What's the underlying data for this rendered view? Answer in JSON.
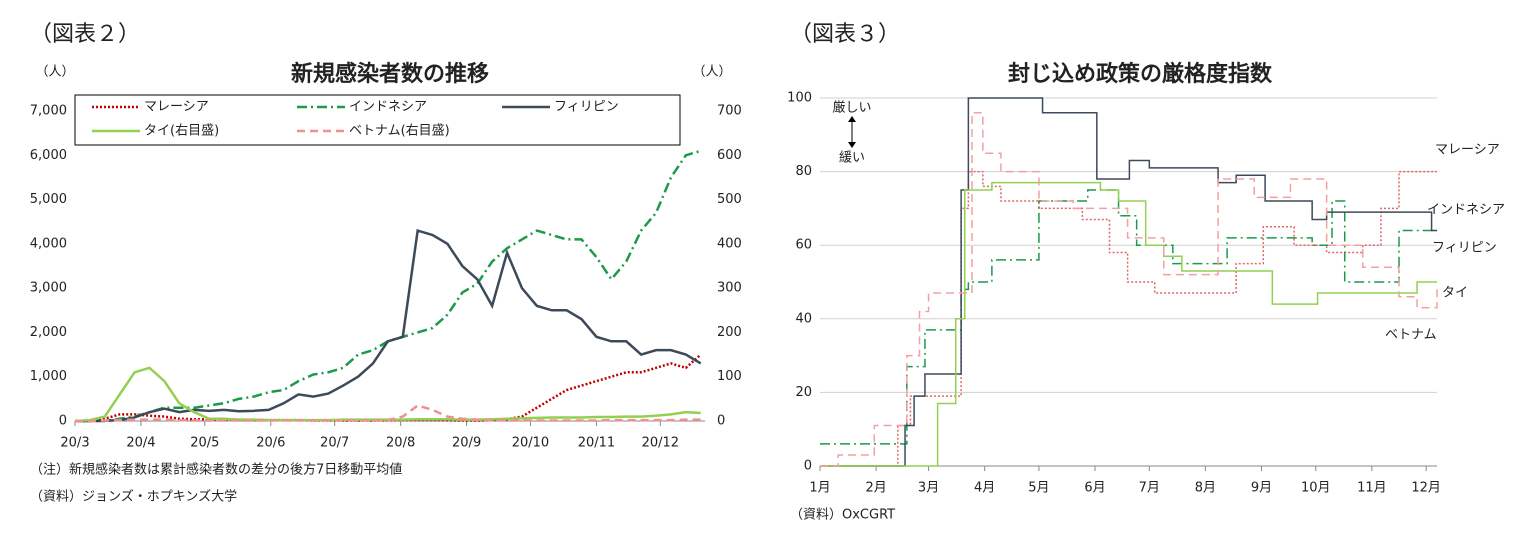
{
  "chart_data": [
    {
      "type": "line",
      "figure_label": "（図表２）",
      "title": "新規感染者数の推移",
      "y_label": "（人）",
      "y2_label": "（人）",
      "notes": [
        "（注）新規感染者数は累計感染者数の差分の後方7日移動平均値",
        "（資料）ジョンズ・ホプキンズ大学"
      ],
      "grid": false,
      "legend": "top",
      "xlim": [
        0,
        296
      ],
      "xticks": [
        {
          "value": 0,
          "label": "20/3"
        },
        {
          "value": 31,
          "label": "20/4"
        },
        {
          "value": 61,
          "label": "20/5"
        },
        {
          "value": 92,
          "label": "20/6"
        },
        {
          "value": 122,
          "label": "20/7"
        },
        {
          "value": 153,
          "label": "20/8"
        },
        {
          "value": 184,
          "label": "20/9"
        },
        {
          "value": 214,
          "label": "20/10"
        },
        {
          "value": 245,
          "label": "20/11"
        },
        {
          "value": 275,
          "label": "20/12"
        }
      ],
      "ylim": [
        0,
        7000
      ],
      "yticks": [
        0,
        {
          "value": 1000,
          "label": "1,000"
        },
        {
          "value": 2000,
          "label": "2,000"
        },
        {
          "value": 3000,
          "label": "3,000"
        },
        {
          "value": 4000,
          "label": "4,000"
        },
        {
          "value": 5000,
          "label": "5,000"
        },
        {
          "value": 6000,
          "label": "6,000"
        },
        {
          "value": 7000,
          "label": "7,000"
        }
      ],
      "y2lim": [
        0,
        700
      ],
      "y2ticks": [
        0,
        100,
        200,
        300,
        400,
        500,
        600,
        700
      ],
      "x": [
        0,
        7,
        14,
        21,
        28,
        35,
        42,
        49,
        56,
        63,
        70,
        77,
        84,
        91,
        98,
        105,
        112,
        119,
        126,
        133,
        140,
        147,
        154,
        161,
        168,
        175,
        182,
        189,
        196,
        203,
        210,
        217,
        224,
        231,
        238,
        245,
        252,
        259,
        266,
        273,
        280,
        287,
        294
      ],
      "series": [
        {
          "name": "マレーシア",
          "color": "#c00000",
          "style": "dotted",
          "values": [
            0,
            0,
            50,
            150,
            150,
            120,
            100,
            50,
            40,
            40,
            40,
            30,
            20,
            20,
            20,
            20,
            10,
            10,
            10,
            10,
            10,
            15,
            20,
            20,
            20,
            15,
            10,
            10,
            20,
            40,
            100,
            300,
            500,
            700,
            800,
            900,
            1000,
            1100,
            1100,
            1200,
            1300,
            1200,
            1500
          ]
        },
        {
          "name": "インドネシア",
          "color": "#1a9a4a",
          "style": "dashdot",
          "values": [
            0,
            0,
            0,
            50,
            100,
            200,
            300,
            300,
            300,
            350,
            400,
            500,
            550,
            650,
            700,
            900,
            1050,
            1100,
            1200,
            1500,
            1600,
            1800,
            1900,
            2000,
            2100,
            2400,
            2900,
            3100,
            3600,
            3900,
            4100,
            4300,
            4200,
            4100,
            4100,
            3700,
            3200,
            3600,
            4300,
            4700,
            5500,
            6000,
            6100
          ]
        },
        {
          "name": "フィリピン",
          "color": "#3d4a5a",
          "style": "solid",
          "values": [
            0,
            0,
            5,
            20,
            80,
            200,
            280,
            200,
            250,
            230,
            250,
            220,
            230,
            250,
            400,
            600,
            550,
            620,
            800,
            1000,
            1300,
            1800,
            1900,
            4300,
            4200,
            4000,
            3500,
            3200,
            2600,
            3800,
            3000,
            2600,
            2500,
            2500,
            2300,
            1900,
            1800,
            1800,
            1500,
            1600,
            1600,
            1500,
            1300
          ]
        },
        {
          "name": "タイ(右目盛)",
          "color": "#92d050",
          "style": "solid",
          "axis": "y2",
          "values": [
            0,
            2,
            10,
            60,
            110,
            120,
            90,
            40,
            20,
            5,
            5,
            3,
            3,
            2,
            2,
            2,
            2,
            2,
            3,
            3,
            3,
            3,
            3,
            4,
            4,
            4,
            3,
            3,
            4,
            5,
            6,
            7,
            8,
            8,
            8,
            9,
            9,
            10,
            10,
            12,
            15,
            20,
            18
          ]
        },
        {
          "name": "ベトナム(右目盛)",
          "color": "#f09090",
          "style": "dashed",
          "axis": "y2",
          "values": [
            0,
            0,
            1,
            2,
            3,
            3,
            3,
            2,
            1,
            1,
            1,
            1,
            1,
            1,
            1,
            1,
            1,
            1,
            1,
            1,
            1,
            2,
            10,
            35,
            25,
            10,
            5,
            3,
            2,
            1,
            1,
            1,
            1,
            1,
            1,
            1,
            2,
            2,
            2,
            2,
            2,
            3,
            3
          ]
        }
      ]
    },
    {
      "type": "step",
      "figure_label": "（図表３）",
      "title": "封じ込め政策の厳格度指数",
      "notes": [
        "（資料）OxCGRT"
      ],
      "annotations": [
        "厳しい",
        "緩い"
      ],
      "grid": true,
      "legend": "line-end",
      "xlim": [
        0,
        341
      ],
      "xticks": [
        {
          "value": 0,
          "label": "1月"
        },
        {
          "value": 31,
          "label": "2月"
        },
        {
          "value": 60,
          "label": "3月"
        },
        {
          "value": 91,
          "label": "4月"
        },
        {
          "value": 121,
          "label": "5月"
        },
        {
          "value": 152,
          "label": "6月"
        },
        {
          "value": 182,
          "label": "7月"
        },
        {
          "value": 213,
          "label": "8月"
        },
        {
          "value": 244,
          "label": "9月"
        },
        {
          "value": 274,
          "label": "10月"
        },
        {
          "value": 305,
          "label": "11月"
        },
        {
          "value": 335,
          "label": "12月"
        }
      ],
      "ylim": [
        0,
        100
      ],
      "yticks": [
        0,
        20,
        40,
        60,
        80,
        100
      ],
      "series": [
        {
          "name": "マレーシア",
          "color": "#e06666",
          "style": "dotted",
          "x": [
            0,
            43,
            50,
            76,
            78,
            82,
            90,
            100,
            121,
            145,
            160,
            170,
            185,
            210,
            230,
            245,
            262,
            280,
            300,
            310,
            320,
            341
          ],
          "values": [
            0,
            11,
            19,
            19,
            70,
            80,
            76,
            72,
            70,
            67,
            58,
            50,
            47,
            47,
            55,
            65,
            60,
            58,
            60,
            70,
            80,
            80
          ]
        },
        {
          "name": "インドネシア",
          "color": "#1a9a4a",
          "style": "dashdot",
          "x": [
            0,
            15,
            48,
            58,
            78,
            82,
            95,
            121,
            148,
            165,
            175,
            195,
            225,
            272,
            283,
            290,
            320,
            341
          ],
          "values": [
            6,
            6,
            27,
            37,
            48,
            50,
            56,
            72,
            75,
            68,
            60,
            55,
            62,
            60,
            72,
            50,
            64,
            64
          ]
        },
        {
          "name": "フィリピン",
          "color": "#3d4a5a",
          "style": "solid",
          "x": [
            0,
            47,
            52,
            58,
            75,
            78,
            82,
            123,
            153,
            171,
            182,
            220,
            230,
            246,
            272,
            280,
            330,
            338,
            341
          ],
          "values": [
            0,
            11,
            19,
            25,
            25,
            75,
            100,
            96,
            78,
            83,
            81,
            77,
            79,
            72,
            67,
            69,
            69,
            64,
            64
          ]
        },
        {
          "name": "タイ",
          "color": "#92d050",
          "style": "solid",
          "x": [
            0,
            65,
            75,
            80,
            95,
            155,
            165,
            180,
            190,
            200,
            230,
            250,
            275,
            320,
            330,
            341
          ],
          "values": [
            0,
            17,
            40,
            75,
            77,
            75,
            72,
            60,
            57,
            53,
            53,
            44,
            47,
            47,
            50,
            50
          ]
        },
        {
          "name": "ベトナム",
          "color": "#f4a0a0",
          "style": "dashed",
          "x": [
            0,
            10,
            30,
            48,
            55,
            60,
            78,
            84,
            90,
            100,
            121,
            140,
            170,
            190,
            220,
            240,
            260,
            280,
            300,
            320,
            330,
            341
          ],
          "values": [
            0,
            3,
            11,
            30,
            42,
            47,
            47,
            96,
            85,
            80,
            72,
            70,
            62,
            52,
            78,
            73,
            78,
            60,
            54,
            46,
            43,
            48
          ]
        }
      ]
    }
  ]
}
